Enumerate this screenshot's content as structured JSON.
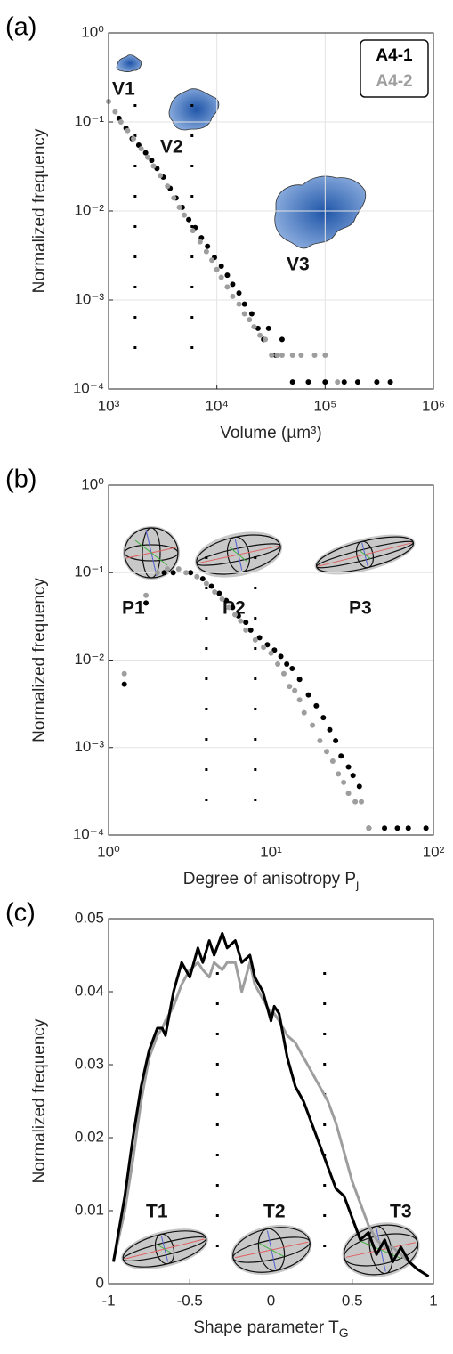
{
  "chart_data": [
    {
      "type": "scatter",
      "panel_label": "(a)",
      "xlabel": "Volume (µm³)",
      "ylabel": "Normalized frequency",
      "xscale": "log",
      "yscale": "log",
      "grid": true,
      "legend": "upper right",
      "xlim": [
        1000,
        1000000
      ],
      "ylim": [
        0.0001,
        1
      ],
      "xticks": [
        {
          "value": 1000,
          "label": "10³"
        },
        {
          "value": 10000,
          "label": "10⁴"
        },
        {
          "value": 100000,
          "label": "10⁵"
        },
        {
          "value": 1000000,
          "label": "10⁶"
        }
      ],
      "yticks": [
        {
          "value": 0.0001,
          "label": "10⁻⁴"
        },
        {
          "value": 0.001,
          "label": "10⁻³"
        },
        {
          "value": 0.01,
          "label": "10⁻²"
        },
        {
          "value": 0.1,
          "label": "10⁻¹"
        },
        {
          "value": 1,
          "label": "10⁰"
        }
      ],
      "vlines": [
        1760,
        5900
      ],
      "annotations": [
        "V1",
        "V2",
        "V3"
      ],
      "series": [
        {
          "name": "A4-1",
          "color": "#000000",
          "x": [
            1250,
            1450,
            1650,
            1900,
            2200,
            2500,
            2800,
            3200,
            3700,
            4200,
            4800,
            5500,
            6300,
            7200,
            8200,
            9500,
            11000,
            12500,
            14000,
            16000,
            18000,
            21000,
            24000,
            27000,
            30000,
            35000,
            40000,
            50000,
            70000,
            100000,
            150000,
            200000,
            300000,
            400000
          ],
          "values": [
            0.11,
            0.085,
            0.065,
            0.055,
            0.045,
            0.037,
            0.03,
            0.024,
            0.018,
            0.014,
            0.011,
            0.008,
            0.0065,
            0.005,
            0.004,
            0.003,
            0.0024,
            0.0019,
            0.0015,
            0.0012,
            0.0009,
            0.0007,
            0.00048,
            0.00036,
            0.00048,
            0.00024,
            0.00036,
            0.00012,
            0.00012,
            0.00012,
            0.00012,
            0.00012,
            0.00012,
            0.00012
          ]
        },
        {
          "name": "A4-2",
          "color": "#9e9e9e",
          "x": [
            1000,
            1150,
            1300,
            1500,
            1700,
            2000,
            2300,
            2600,
            3000,
            3500,
            4000,
            4500,
            5000,
            6000,
            7000,
            8000,
            9000,
            10000,
            11000,
            12500,
            14000,
            16000,
            18000,
            20000,
            22000,
            25000,
            28000,
            32000,
            36000,
            40000,
            50000,
            60000,
            80000,
            100000,
            130000
          ],
          "values": [
            0.17,
            0.13,
            0.1,
            0.08,
            0.065,
            0.05,
            0.04,
            0.032,
            0.025,
            0.019,
            0.014,
            0.011,
            0.009,
            0.006,
            0.0045,
            0.0035,
            0.0028,
            0.0022,
            0.0018,
            0.0014,
            0.0011,
            0.0009,
            0.0007,
            0.0006,
            0.0005,
            0.0004,
            0.00036,
            0.00024,
            0.00024,
            0.00024,
            0.00024,
            0.00024,
            0.00024,
            0.00024,
            0.00012
          ]
        }
      ]
    },
    {
      "type": "scatter",
      "panel_label": "(b)",
      "xlabel": "Degree of anisotropy P",
      "xlabel_sub": "j",
      "ylabel": "Normalized frequency",
      "xscale": "log",
      "yscale": "log",
      "grid": true,
      "xlim": [
        1,
        100
      ],
      "ylim": [
        0.0001,
        1
      ],
      "xticks": [
        {
          "value": 1,
          "label": "10⁰"
        },
        {
          "value": 10,
          "label": "10¹"
        },
        {
          "value": 100,
          "label": "10²"
        }
      ],
      "yticks": [
        {
          "value": 0.0001,
          "label": "10⁻⁴"
        },
        {
          "value": 0.001,
          "label": "10⁻³"
        },
        {
          "value": 0.01,
          "label": "10⁻²"
        },
        {
          "value": 0.1,
          "label": "10⁻¹"
        },
        {
          "value": 1,
          "label": "10⁰"
        }
      ],
      "vlines": [
        4,
        8
      ],
      "annotations": [
        "P1",
        "P2",
        "P3"
      ],
      "series": [
        {
          "name": "A4-1",
          "color": "#000000",
          "x": [
            1.25,
            1.7,
            2.2,
            2.5,
            3.2,
            3.8,
            4.3,
            4.8,
            5.3,
            5.8,
            6.3,
            7,
            7.5,
            8.5,
            9.5,
            10.5,
            11.5,
            12.5,
            13.5,
            15,
            17,
            19,
            21,
            23,
            25,
            27,
            30,
            32,
            35,
            40,
            50,
            60,
            70,
            90
          ],
          "values": [
            0.0053,
            0.045,
            0.1,
            0.1,
            0.1,
            0.085,
            0.07,
            0.058,
            0.048,
            0.04,
            0.032,
            0.027,
            0.022,
            0.018,
            0.015,
            0.013,
            0.011,
            0.009,
            0.008,
            0.006,
            0.004,
            0.003,
            0.0022,
            0.0016,
            0.0012,
            0.0008,
            0.0006,
            0.00048,
            0.00036,
            0.00012,
            0.00012,
            0.00012,
            0.00012,
            0.00012
          ]
        },
        {
          "name": "A4-2",
          "color": "#9e9e9e",
          "x": [
            1.25,
            1.7,
            2,
            2.3,
            2.7,
            3,
            3.5,
            4,
            4.5,
            5,
            5.5,
            6,
            6.5,
            7,
            8,
            9,
            10,
            11,
            12,
            13,
            14,
            15,
            16,
            18,
            20,
            22,
            24,
            26,
            28,
            30,
            33,
            36,
            40
          ],
          "values": [
            0.007,
            0.055,
            0.1,
            0.11,
            0.11,
            0.1,
            0.09,
            0.075,
            0.06,
            0.05,
            0.04,
            0.033,
            0.028,
            0.022,
            0.017,
            0.014,
            0.012,
            0.009,
            0.007,
            0.005,
            0.0045,
            0.0035,
            0.0025,
            0.0018,
            0.0012,
            0.0009,
            0.0007,
            0.0005,
            0.0004,
            0.0003,
            0.00024,
            0.00024,
            0.00012
          ]
        }
      ]
    },
    {
      "type": "line",
      "panel_label": "(c)",
      "xlabel": "Shape parameter T",
      "xlabel_sub": "G",
      "ylabel": "Normalized frequency",
      "grid": false,
      "xlim": [
        -1,
        1
      ],
      "ylim": [
        0,
        0.05
      ],
      "xticks": [
        -1,
        -0.5,
        0,
        0.5,
        1
      ],
      "yticks": [
        0,
        0.01,
        0.02,
        0.03,
        0.04,
        0.05
      ],
      "vlines": [
        -0.33,
        0,
        0.33
      ],
      "vline_styles": [
        "dotted",
        "solid",
        "dotted"
      ],
      "annotations": [
        "T1",
        "T2",
        "T3"
      ],
      "x": [
        -0.97,
        -0.9,
        -0.85,
        -0.8,
        -0.75,
        -0.7,
        -0.67,
        -0.65,
        -0.6,
        -0.55,
        -0.5,
        -0.45,
        -0.42,
        -0.38,
        -0.35,
        -0.3,
        -0.27,
        -0.22,
        -0.18,
        -0.13,
        -0.1,
        -0.05,
        0,
        0.02,
        0.05,
        0.1,
        0.15,
        0.2,
        0.25,
        0.3,
        0.35,
        0.4,
        0.45,
        0.5,
        0.55,
        0.6,
        0.65,
        0.7,
        0.75,
        0.8,
        0.85,
        0.9,
        0.97
      ],
      "series": [
        {
          "name": "A4-1",
          "color": "#000000",
          "values": [
            0.003,
            0.012,
            0.02,
            0.027,
            0.032,
            0.035,
            0.035,
            0.034,
            0.04,
            0.044,
            0.042,
            0.046,
            0.044,
            0.047,
            0.045,
            0.048,
            0.046,
            0.047,
            0.044,
            0.045,
            0.042,
            0.04,
            0.036,
            0.038,
            0.037,
            0.031,
            0.027,
            0.025,
            0.022,
            0.019,
            0.016,
            0.013,
            0.012,
            0.009,
            0.006,
            0.007,
            0.004,
            0.006,
            0.003,
            0.005,
            0.003,
            0.002,
            0.001
          ]
        },
        {
          "name": "A4-2",
          "color": "#9e9e9e",
          "values": [
            0.003,
            0.01,
            0.017,
            0.025,
            0.031,
            0.034,
            0.035,
            0.036,
            0.038,
            0.041,
            0.043,
            0.044,
            0.043,
            0.042,
            0.044,
            0.043,
            0.044,
            0.044,
            0.04,
            0.044,
            0.041,
            0.039,
            0.037,
            0.037,
            0.036,
            0.034,
            0.033,
            0.031,
            0.029,
            0.027,
            0.025,
            0.022,
            0.018,
            0.014,
            0.011,
            0.008,
            0.006,
            0.005,
            0.005,
            0.004,
            0.003,
            0.002,
            0.001
          ]
        }
      ]
    }
  ]
}
